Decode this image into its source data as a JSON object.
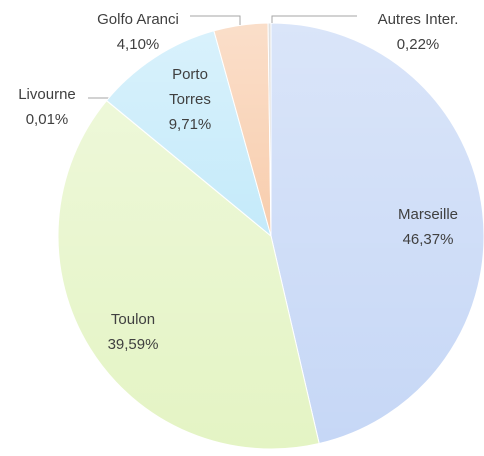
{
  "chart_data": {
    "type": "pie",
    "categories": [
      "Marseille",
      "Toulon",
      "Livourne",
      "Porto Torres",
      "Golfo Aranci",
      "Autres Inter."
    ],
    "values": [
      46.37,
      39.59,
      0.01,
      9.71,
      4.1,
      0.22
    ],
    "value_labels": [
      "46,37%",
      "39,59%",
      "0,01%",
      "9,71%",
      "4,10%",
      "0,22%"
    ],
    "colors": [
      "#c6d7f6",
      "#e4f4c4",
      "#e8e8e8",
      "#c4eafa",
      "#f8cdad",
      "#d0d0d0"
    ]
  }
}
